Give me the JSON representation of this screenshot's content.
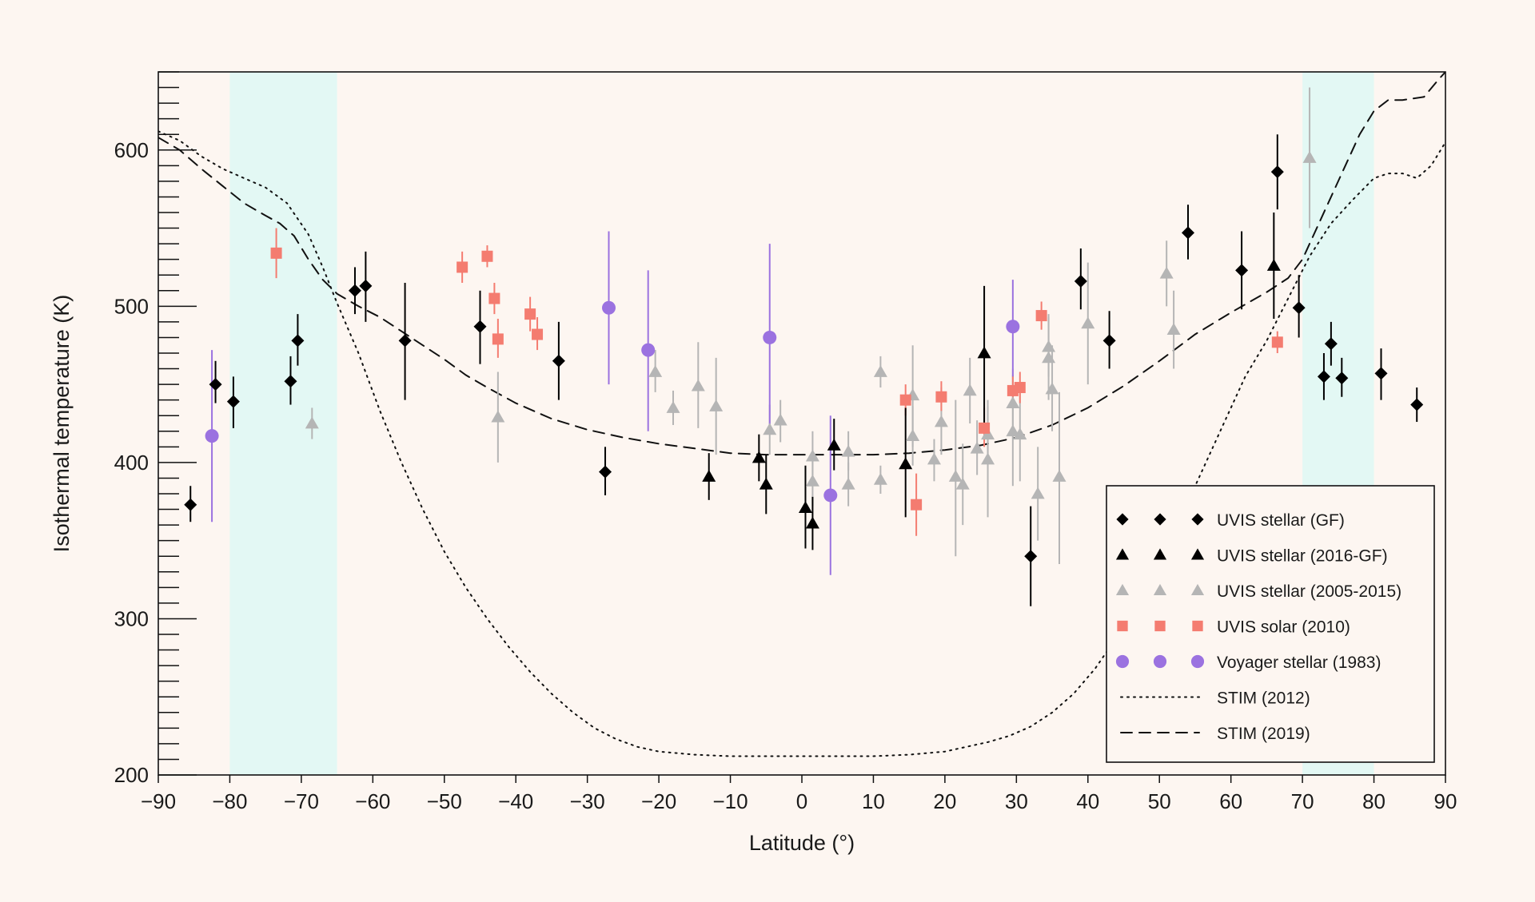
{
  "chart_data": {
    "type": "scatter",
    "title": "",
    "xlabel": "Latitude (°)",
    "ylabel": "Isothermal temperature (K)",
    "xlim": [
      -90,
      90
    ],
    "ylim": [
      200,
      650
    ],
    "xticks": [
      -90,
      -80,
      -70,
      -60,
      -50,
      -40,
      -30,
      -20,
      -10,
      0,
      10,
      20,
      30,
      40,
      50,
      60,
      70,
      80,
      90
    ],
    "xtick_labels": [
      "−90",
      "−80",
      "−70",
      "−60",
      "−50",
      "−40",
      "−30",
      "−20",
      "−10",
      "0",
      "10",
      "20",
      "30",
      "40",
      "50",
      "60",
      "70",
      "80",
      "90"
    ],
    "yticks": [
      200,
      300,
      400,
      500,
      600
    ],
    "ytick_labels": [
      "200",
      "300",
      "400",
      "500",
      "600"
    ],
    "grid": false,
    "legend_position": "bottom-right",
    "shaded_regions": [
      {
        "xmin": -80,
        "xmax": -65,
        "color": "#e3f8f4"
      },
      {
        "xmin": 70,
        "xmax": 80,
        "color": "#e3f8f4"
      }
    ],
    "series": [
      {
        "name": "UVIS stellar (GF)",
        "marker": "diamond",
        "color": "#000000",
        "points": [
          {
            "x": -85.5,
            "y": 373,
            "lo": 362,
            "hi": 385
          },
          {
            "x": -82,
            "y": 450,
            "lo": 438,
            "hi": 465
          },
          {
            "x": -79.5,
            "y": 439,
            "lo": 422,
            "hi": 455
          },
          {
            "x": -71.5,
            "y": 452,
            "lo": 437,
            "hi": 468
          },
          {
            "x": -70.5,
            "y": 478,
            "lo": 462,
            "hi": 495
          },
          {
            "x": -62.5,
            "y": 510,
            "lo": 495,
            "hi": 525
          },
          {
            "x": -61,
            "y": 513,
            "lo": 490,
            "hi": 535
          },
          {
            "x": -55.5,
            "y": 478,
            "lo": 440,
            "hi": 515
          },
          {
            "x": -45,
            "y": 487,
            "lo": 463,
            "hi": 510
          },
          {
            "x": -34,
            "y": 465,
            "lo": 440,
            "hi": 490
          },
          {
            "x": -27.5,
            "y": 394,
            "lo": 379,
            "hi": 410
          },
          {
            "x": 32,
            "y": 340,
            "lo": 308,
            "hi": 372
          },
          {
            "x": 39,
            "y": 516,
            "lo": 498,
            "hi": 537
          },
          {
            "x": 43,
            "y": 478,
            "lo": 460,
            "hi": 497
          },
          {
            "x": 54,
            "y": 547,
            "lo": 530,
            "hi": 565
          },
          {
            "x": 61.5,
            "y": 523,
            "lo": 498,
            "hi": 548
          },
          {
            "x": 66.5,
            "y": 586,
            "lo": 562,
            "hi": 610
          },
          {
            "x": 69.5,
            "y": 499,
            "lo": 480,
            "hi": 520
          },
          {
            "x": 73,
            "y": 455,
            "lo": 440,
            "hi": 470
          },
          {
            "x": 74,
            "y": 476,
            "lo": 462,
            "hi": 490
          },
          {
            "x": 75.5,
            "y": 454,
            "lo": 442,
            "hi": 467
          },
          {
            "x": 81,
            "y": 457,
            "lo": 440,
            "hi": 473
          },
          {
            "x": 86,
            "y": 437,
            "lo": 426,
            "hi": 448
          }
        ]
      },
      {
        "name": "UVIS stellar (2016-GF)",
        "marker": "triangle",
        "color": "#000000",
        "points": [
          {
            "x": -13,
            "y": 391,
            "lo": 376,
            "hi": 406
          },
          {
            "x": -6,
            "y": 403,
            "lo": 388,
            "hi": 418
          },
          {
            "x": -5,
            "y": 386,
            "lo": 367,
            "hi": 405
          },
          {
            "x": 0.5,
            "y": 371,
            "lo": 345,
            "hi": 398
          },
          {
            "x": 1.5,
            "y": 361,
            "lo": 344,
            "hi": 378
          },
          {
            "x": 4.5,
            "y": 411,
            "lo": 395,
            "hi": 428
          },
          {
            "x": 14.5,
            "y": 399,
            "lo": 365,
            "hi": 435
          },
          {
            "x": 25.5,
            "y": 470,
            "lo": 425,
            "hi": 513
          },
          {
            "x": 66,
            "y": 526,
            "lo": 492,
            "hi": 560
          }
        ]
      },
      {
        "name": "UVIS stellar (2005-2015)",
        "marker": "triangle",
        "color": "#b5b5b5",
        "points": [
          {
            "x": -68.5,
            "y": 425,
            "lo": 415,
            "hi": 435
          },
          {
            "x": -42.5,
            "y": 429,
            "lo": 400,
            "hi": 458
          },
          {
            "x": -20.5,
            "y": 458,
            "lo": 445,
            "hi": 472
          },
          {
            "x": -18,
            "y": 435,
            "lo": 424,
            "hi": 446
          },
          {
            "x": -14.5,
            "y": 449,
            "lo": 422,
            "hi": 477
          },
          {
            "x": -12,
            "y": 436,
            "lo": 405,
            "hi": 467
          },
          {
            "x": -4.5,
            "y": 421,
            "lo": 405,
            "hi": 437
          },
          {
            "x": -3,
            "y": 427,
            "lo": 413,
            "hi": 440
          },
          {
            "x": 1.5,
            "y": 404,
            "lo": 388,
            "hi": 420
          },
          {
            "x": 1.5,
            "y": 388,
            "lo": 372,
            "hi": 405
          },
          {
            "x": 6.5,
            "y": 386,
            "lo": 372,
            "hi": 400
          },
          {
            "x": 6.5,
            "y": 407,
            "lo": 395,
            "hi": 420
          },
          {
            "x": 11,
            "y": 458,
            "lo": 448,
            "hi": 468
          },
          {
            "x": 11,
            "y": 389,
            "lo": 380,
            "hi": 398
          },
          {
            "x": 15.5,
            "y": 443,
            "lo": 410,
            "hi": 475
          },
          {
            "x": 15.5,
            "y": 417,
            "lo": 398,
            "hi": 436
          },
          {
            "x": 18.5,
            "y": 402,
            "lo": 388,
            "hi": 415
          },
          {
            "x": 19.5,
            "y": 426,
            "lo": 405,
            "hi": 448
          },
          {
            "x": 21.5,
            "y": 391,
            "lo": 340,
            "hi": 440
          },
          {
            "x": 22.5,
            "y": 386,
            "lo": 360,
            "hi": 412
          },
          {
            "x": 23.5,
            "y": 446,
            "lo": 425,
            "hi": 467
          },
          {
            "x": 24.5,
            "y": 409,
            "lo": 392,
            "hi": 427
          },
          {
            "x": 26,
            "y": 402,
            "lo": 365,
            "hi": 440
          },
          {
            "x": 26,
            "y": 418,
            "lo": 400,
            "hi": 436
          },
          {
            "x": 29.5,
            "y": 438,
            "lo": 415,
            "hi": 460
          },
          {
            "x": 29.5,
            "y": 420,
            "lo": 385,
            "hi": 455
          },
          {
            "x": 30.5,
            "y": 418,
            "lo": 388,
            "hi": 448
          },
          {
            "x": 33,
            "y": 380,
            "lo": 350,
            "hi": 410
          },
          {
            "x": 34.5,
            "y": 474,
            "lo": 455,
            "hi": 493
          },
          {
            "x": 34.5,
            "y": 467,
            "lo": 440,
            "hi": 495
          },
          {
            "x": 35,
            "y": 447,
            "lo": 420,
            "hi": 475
          },
          {
            "x": 36,
            "y": 391,
            "lo": 335,
            "hi": 445
          },
          {
            "x": 40,
            "y": 489,
            "lo": 450,
            "hi": 528
          },
          {
            "x": 51,
            "y": 521,
            "lo": 500,
            "hi": 542
          },
          {
            "x": 52,
            "y": 485,
            "lo": 460,
            "hi": 510
          },
          {
            "x": 71,
            "y": 595,
            "lo": 550,
            "hi": 640
          }
        ]
      },
      {
        "name": "UVIS solar (2010)",
        "marker": "square",
        "color": "#f47c70",
        "points": [
          {
            "x": -73.5,
            "y": 534,
            "lo": 518,
            "hi": 550
          },
          {
            "x": -47.5,
            "y": 525,
            "lo": 515,
            "hi": 535
          },
          {
            "x": -44,
            "y": 532,
            "lo": 525,
            "hi": 539
          },
          {
            "x": -43,
            "y": 505,
            "lo": 495,
            "hi": 515
          },
          {
            "x": -42.5,
            "y": 479,
            "lo": 467,
            "hi": 492
          },
          {
            "x": -38,
            "y": 495,
            "lo": 484,
            "hi": 506
          },
          {
            "x": -37,
            "y": 482,
            "lo": 472,
            "hi": 493
          },
          {
            "x": 14.5,
            "y": 440,
            "lo": 430,
            "hi": 450
          },
          {
            "x": 16,
            "y": 373,
            "lo": 353,
            "hi": 393
          },
          {
            "x": 19.5,
            "y": 442,
            "lo": 433,
            "hi": 452
          },
          {
            "x": 25.5,
            "y": 422,
            "lo": 410,
            "hi": 435
          },
          {
            "x": 29.5,
            "y": 446,
            "lo": 436,
            "hi": 456
          },
          {
            "x": 30.5,
            "y": 448,
            "lo": 438,
            "hi": 458
          },
          {
            "x": 33.5,
            "y": 494,
            "lo": 485,
            "hi": 503
          },
          {
            "x": 66.5,
            "y": 477,
            "lo": 470,
            "hi": 484
          }
        ]
      },
      {
        "name": "Voyager stellar (1983)",
        "marker": "circle",
        "color": "#9b72e0",
        "points": [
          {
            "x": -82.5,
            "y": 417,
            "lo": 362,
            "hi": 472
          },
          {
            "x": -27,
            "y": 499,
            "lo": 450,
            "hi": 548
          },
          {
            "x": -21.5,
            "y": 472,
            "lo": 420,
            "hi": 523
          },
          {
            "x": -4.5,
            "y": 480,
            "lo": 420,
            "hi": 540
          },
          {
            "x": 4,
            "y": 379,
            "lo": 328,
            "hi": 430
          },
          {
            "x": 29.5,
            "y": 487,
            "lo": 455,
            "hi": 517
          }
        ]
      }
    ],
    "lines": [
      {
        "name": "STIM (2012)",
        "style": "dotted",
        "color": "#111111",
        "points": [
          [
            -90,
            612
          ],
          [
            -87,
            606
          ],
          [
            -84,
            596
          ],
          [
            -81,
            588
          ],
          [
            -78,
            582
          ],
          [
            -75,
            576
          ],
          [
            -72,
            566
          ],
          [
            -69,
            546
          ],
          [
            -67,
            525
          ],
          [
            -65,
            502
          ],
          [
            -62,
            470
          ],
          [
            -59,
            433
          ],
          [
            -56,
            400
          ],
          [
            -53,
            370
          ],
          [
            -50,
            343
          ],
          [
            -47,
            320
          ],
          [
            -44,
            300
          ],
          [
            -41,
            282
          ],
          [
            -38,
            266
          ],
          [
            -35,
            252
          ],
          [
            -32,
            240
          ],
          [
            -29,
            230
          ],
          [
            -26,
            223
          ],
          [
            -23,
            218
          ],
          [
            -20,
            215
          ],
          [
            -15,
            213
          ],
          [
            -10,
            212
          ],
          [
            0,
            212
          ],
          [
            10,
            212
          ],
          [
            15,
            213
          ],
          [
            20,
            215
          ],
          [
            23,
            218
          ],
          [
            26,
            221
          ],
          [
            29,
            225
          ],
          [
            32,
            231
          ],
          [
            35,
            240
          ],
          [
            38,
            252
          ],
          [
            41,
            268
          ],
          [
            44,
            288
          ],
          [
            47,
            312
          ],
          [
            50,
            338
          ],
          [
            53,
            365
          ],
          [
            56,
            395
          ],
          [
            59,
            425
          ],
          [
            62,
            455
          ],
          [
            65,
            478
          ],
          [
            68,
            505
          ],
          [
            71,
            532
          ],
          [
            74,
            553
          ],
          [
            77,
            568
          ],
          [
            80,
            582
          ],
          [
            82,
            585
          ],
          [
            84,
            585
          ],
          [
            86,
            582
          ],
          [
            88,
            590
          ],
          [
            90,
            605
          ]
        ]
      },
      {
        "name": "STIM (2019)",
        "style": "dashed",
        "color": "#111111",
        "points": [
          [
            -90,
            608
          ],
          [
            -87,
            600
          ],
          [
            -84,
            588
          ],
          [
            -81,
            577
          ],
          [
            -78,
            566
          ],
          [
            -75,
            558
          ],
          [
            -73,
            553
          ],
          [
            -71,
            545
          ],
          [
            -69,
            530
          ],
          [
            -67,
            517
          ],
          [
            -65,
            508
          ],
          [
            -62,
            500
          ],
          [
            -59,
            493
          ],
          [
            -56,
            484
          ],
          [
            -53,
            475
          ],
          [
            -50,
            466
          ],
          [
            -47,
            456
          ],
          [
            -44,
            448
          ],
          [
            -40,
            438
          ],
          [
            -35,
            428
          ],
          [
            -30,
            421
          ],
          [
            -25,
            416
          ],
          [
            -20,
            412
          ],
          [
            -15,
            409
          ],
          [
            -10,
            406
          ],
          [
            -5,
            405
          ],
          [
            0,
            405
          ],
          [
            5,
            405
          ],
          [
            10,
            405
          ],
          [
            15,
            406
          ],
          [
            20,
            408
          ],
          [
            25,
            411
          ],
          [
            30,
            416
          ],
          [
            35,
            424
          ],
          [
            40,
            435
          ],
          [
            45,
            449
          ],
          [
            50,
            465
          ],
          [
            55,
            482
          ],
          [
            60,
            496
          ],
          [
            65,
            509
          ],
          [
            68,
            518
          ],
          [
            70,
            530
          ],
          [
            72,
            550
          ],
          [
            74,
            570
          ],
          [
            76,
            590
          ],
          [
            78,
            610
          ],
          [
            80,
            625
          ],
          [
            82,
            632
          ],
          [
            84,
            632
          ],
          [
            87,
            634
          ],
          [
            89,
            645
          ],
          [
            90,
            650
          ]
        ]
      }
    ],
    "legend": [
      {
        "label": "UVIS stellar (GF)",
        "marker": "diamond",
        "color": "#000000"
      },
      {
        "label": "UVIS stellar (2016-GF)",
        "marker": "triangle",
        "color": "#000000"
      },
      {
        "label": "UVIS stellar (2005-2015)",
        "marker": "triangle",
        "color": "#b5b5b5"
      },
      {
        "label": "UVIS solar (2010)",
        "marker": "square",
        "color": "#f47c70"
      },
      {
        "label": "Voyager stellar (1983)",
        "marker": "circle",
        "color": "#9b72e0"
      },
      {
        "label": "STIM (2012)",
        "marker": "dotted",
        "color": "#111111"
      },
      {
        "label": "STIM (2019)",
        "marker": "dashed",
        "color": "#111111"
      }
    ]
  }
}
